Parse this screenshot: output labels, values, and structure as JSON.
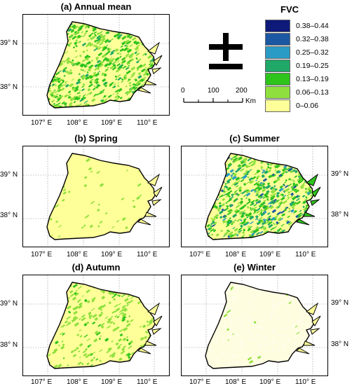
{
  "panels": [
    {
      "id": "a",
      "title": "(a) Annual mean",
      "fill_density": 0.9
    },
    {
      "id": "b",
      "title": "(b) Spring",
      "fill_density": 0.05
    },
    {
      "id": "c",
      "title": "(c) Summer",
      "fill_density": 1.0
    },
    {
      "id": "d",
      "title": "(d) Autumn",
      "fill_density": 0.35
    },
    {
      "id": "e",
      "title": "(e) Winter",
      "fill_density": 0.02
    }
  ],
  "axes": {
    "lon_labels": [
      "107° E",
      "108° E",
      "109° E",
      "110° E"
    ],
    "lat_labels": [
      "39° N",
      "38° N"
    ]
  },
  "legend": {
    "title": "FVC",
    "items": [
      {
        "label": "0.38–0.44",
        "color": "#0d1a7a"
      },
      {
        "label": "0.32–0.38",
        "color": "#1c57a3"
      },
      {
        "label": "0.25–0.32",
        "color": "#2a9bc4"
      },
      {
        "label": "0.19–0.25",
        "color": "#1fa868"
      },
      {
        "label": "0.13–0.19",
        "color": "#2ec41c"
      },
      {
        "label": "0.06–0.13",
        "color": "#8fe03e"
      },
      {
        "label": "0–0.06",
        "color": "#ffff99"
      }
    ]
  },
  "scalebar": {
    "ticks": [
      "0",
      "100",
      "200"
    ],
    "unit": "Km"
  }
}
